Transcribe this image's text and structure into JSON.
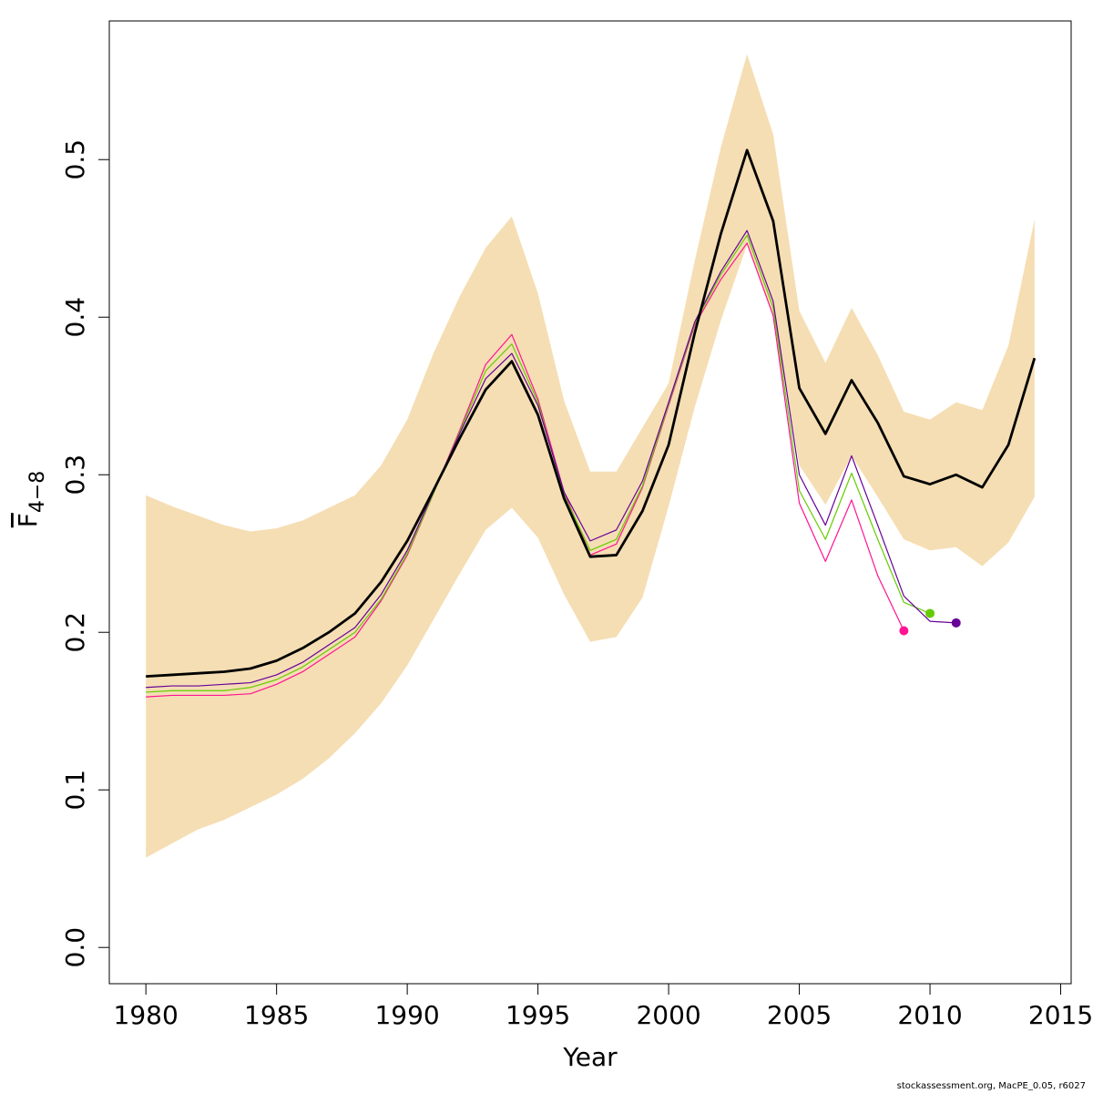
{
  "chart_data": {
    "type": "line",
    "xlabel": "Year",
    "ylabel_main": "F",
    "ylabel_sub": "4−8",
    "xlim": [
      1978.6,
      2015.4
    ],
    "ylim": [
      -0.023,
      0.588
    ],
    "xticks": [
      1980,
      1985,
      1990,
      1995,
      2000,
      2005,
      2010,
      2015
    ],
    "yticks": [
      0.0,
      0.1,
      0.2,
      0.3,
      0.4,
      0.5
    ],
    "ytick_labels": [
      "0.0",
      "0.1",
      "0.2",
      "0.3",
      "0.4",
      "0.5"
    ],
    "grid": false,
    "band": {
      "color": "#F5DEB3",
      "x": [
        1980,
        1981,
        1982,
        1983,
        1984,
        1985,
        1986,
        1987,
        1988,
        1989,
        1990,
        1991,
        1992,
        1993,
        1994,
        1995,
        1996,
        1997,
        1998,
        1999,
        2000,
        2001,
        2002,
        2003,
        2004,
        2005,
        2006,
        2007,
        2008,
        2009,
        2010,
        2011,
        2012,
        2013,
        2014
      ],
      "upper": [
        0.287,
        0.28,
        0.274,
        0.268,
        0.264,
        0.266,
        0.271,
        0.279,
        0.287,
        0.306,
        0.335,
        0.377,
        0.413,
        0.444,
        0.464,
        0.415,
        0.347,
        0.302,
        0.302,
        0.33,
        0.358,
        0.436,
        0.508,
        0.567,
        0.516,
        0.404,
        0.371,
        0.406,
        0.376,
        0.34,
        0.335,
        0.346,
        0.341,
        0.382,
        0.462
      ],
      "lower": [
        0.057,
        0.066,
        0.075,
        0.081,
        0.089,
        0.097,
        0.107,
        0.12,
        0.136,
        0.155,
        0.179,
        0.208,
        0.237,
        0.265,
        0.279,
        0.26,
        0.224,
        0.194,
        0.197,
        0.222,
        0.28,
        0.343,
        0.398,
        0.446,
        0.402,
        0.306,
        0.281,
        0.312,
        0.286,
        0.259,
        0.252,
        0.254,
        0.242,
        0.257,
        0.286
      ]
    },
    "series": [
      {
        "color": "#FF1493",
        "width": 1.2,
        "x": [
          1980,
          1981,
          1982,
          1983,
          1984,
          1985,
          1986,
          1987,
          1988,
          1989,
          1990,
          1991,
          1992,
          1993,
          1994,
          1995,
          1996,
          1997,
          1998,
          1999,
          2000,
          2001,
          2002,
          2003,
          2004,
          2005,
          2006,
          2007,
          2008,
          2009
        ],
        "y": [
          0.159,
          0.16,
          0.16,
          0.16,
          0.161,
          0.167,
          0.175,
          0.186,
          0.197,
          0.22,
          0.249,
          0.288,
          0.328,
          0.37,
          0.389,
          0.348,
          0.289,
          0.249,
          0.256,
          0.292,
          0.344,
          0.395,
          0.424,
          0.447,
          0.401,
          0.282,
          0.245,
          0.284,
          0.236,
          0.201
        ],
        "end_marker": true
      },
      {
        "color": "#66CC00",
        "width": 1.2,
        "x": [
          1980,
          1981,
          1982,
          1983,
          1984,
          1985,
          1986,
          1987,
          1988,
          1989,
          1990,
          1991,
          1992,
          1993,
          1994,
          1995,
          1996,
          1997,
          1998,
          1999,
          2000,
          2001,
          2002,
          2003,
          2004,
          2005,
          2006,
          2007,
          2008,
          2009,
          2010
        ],
        "y": [
          0.162,
          0.163,
          0.163,
          0.163,
          0.165,
          0.17,
          0.178,
          0.189,
          0.2,
          0.221,
          0.25,
          0.288,
          0.327,
          0.366,
          0.383,
          0.346,
          0.287,
          0.252,
          0.259,
          0.293,
          0.345,
          0.396,
          0.427,
          0.452,
          0.406,
          0.29,
          0.259,
          0.301,
          0.259,
          0.219,
          0.212
        ],
        "end_marker": true
      },
      {
        "color": "#660099",
        "width": 1.2,
        "x": [
          1980,
          1981,
          1982,
          1983,
          1984,
          1985,
          1986,
          1987,
          1988,
          1989,
          1990,
          1991,
          1992,
          1993,
          1994,
          1995,
          1996,
          1997,
          1998,
          1999,
          2000,
          2001,
          2002,
          2003,
          2004,
          2005,
          2006,
          2007,
          2008,
          2009,
          2010,
          2011
        ],
        "y": [
          0.165,
          0.166,
          0.166,
          0.167,
          0.168,
          0.173,
          0.181,
          0.192,
          0.203,
          0.224,
          0.252,
          0.289,
          0.326,
          0.361,
          0.377,
          0.344,
          0.289,
          0.258,
          0.265,
          0.296,
          0.346,
          0.397,
          0.429,
          0.455,
          0.41,
          0.3,
          0.268,
          0.312,
          0.268,
          0.223,
          0.207,
          0.206
        ],
        "end_marker": true
      },
      {
        "color": "#000000",
        "width": 2.8,
        "x": [
          1980,
          1981,
          1982,
          1983,
          1984,
          1985,
          1986,
          1987,
          1988,
          1989,
          1990,
          1991,
          1992,
          1993,
          1994,
          1995,
          1996,
          1997,
          1998,
          1999,
          2000,
          2001,
          2002,
          2003,
          2004,
          2005,
          2006,
          2007,
          2008,
          2009,
          2010,
          2011,
          2012,
          2013,
          2014
        ],
        "y": [
          0.172,
          0.173,
          0.174,
          0.175,
          0.177,
          0.182,
          0.19,
          0.2,
          0.212,
          0.232,
          0.258,
          0.29,
          0.323,
          0.354,
          0.372,
          0.338,
          0.285,
          0.248,
          0.249,
          0.277,
          0.319,
          0.39,
          0.453,
          0.506,
          0.461,
          0.355,
          0.326,
          0.36,
          0.333,
          0.299,
          0.294,
          0.3,
          0.292,
          0.319,
          0.374
        ],
        "end_marker": false
      }
    ]
  },
  "footer": {
    "text": "stockassessment.org, MacPE_0.05, r6027"
  }
}
